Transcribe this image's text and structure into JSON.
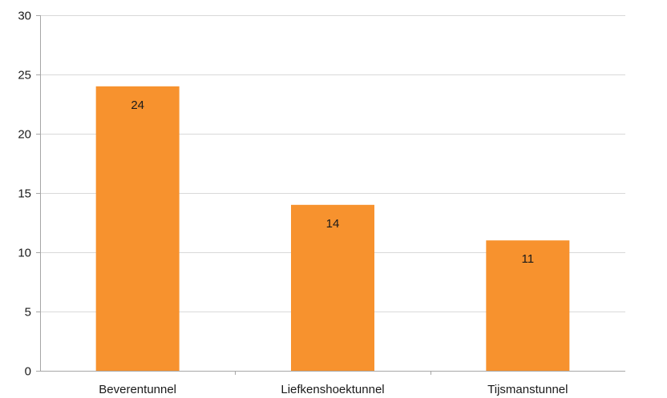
{
  "chart_data": {
    "type": "bar",
    "categories": [
      "Beverentunnel",
      "Liefkenshoektunnel",
      "Tijsmanstunnel"
    ],
    "values": [
      24,
      14,
      11
    ],
    "data_labels": [
      "24",
      "14",
      "11"
    ],
    "ylim": [
      0,
      30
    ],
    "yticks": [
      0,
      5,
      10,
      15,
      20,
      25,
      30
    ],
    "ytick_labels": [
      "0",
      "5",
      "10",
      "15",
      "20",
      "25",
      "30"
    ],
    "title": "",
    "xlabel": "",
    "ylabel": "",
    "grid": true,
    "bar_color": "#f7922e",
    "grid_color": "#d9d9d9",
    "axis_color": "#a6a6a6"
  }
}
